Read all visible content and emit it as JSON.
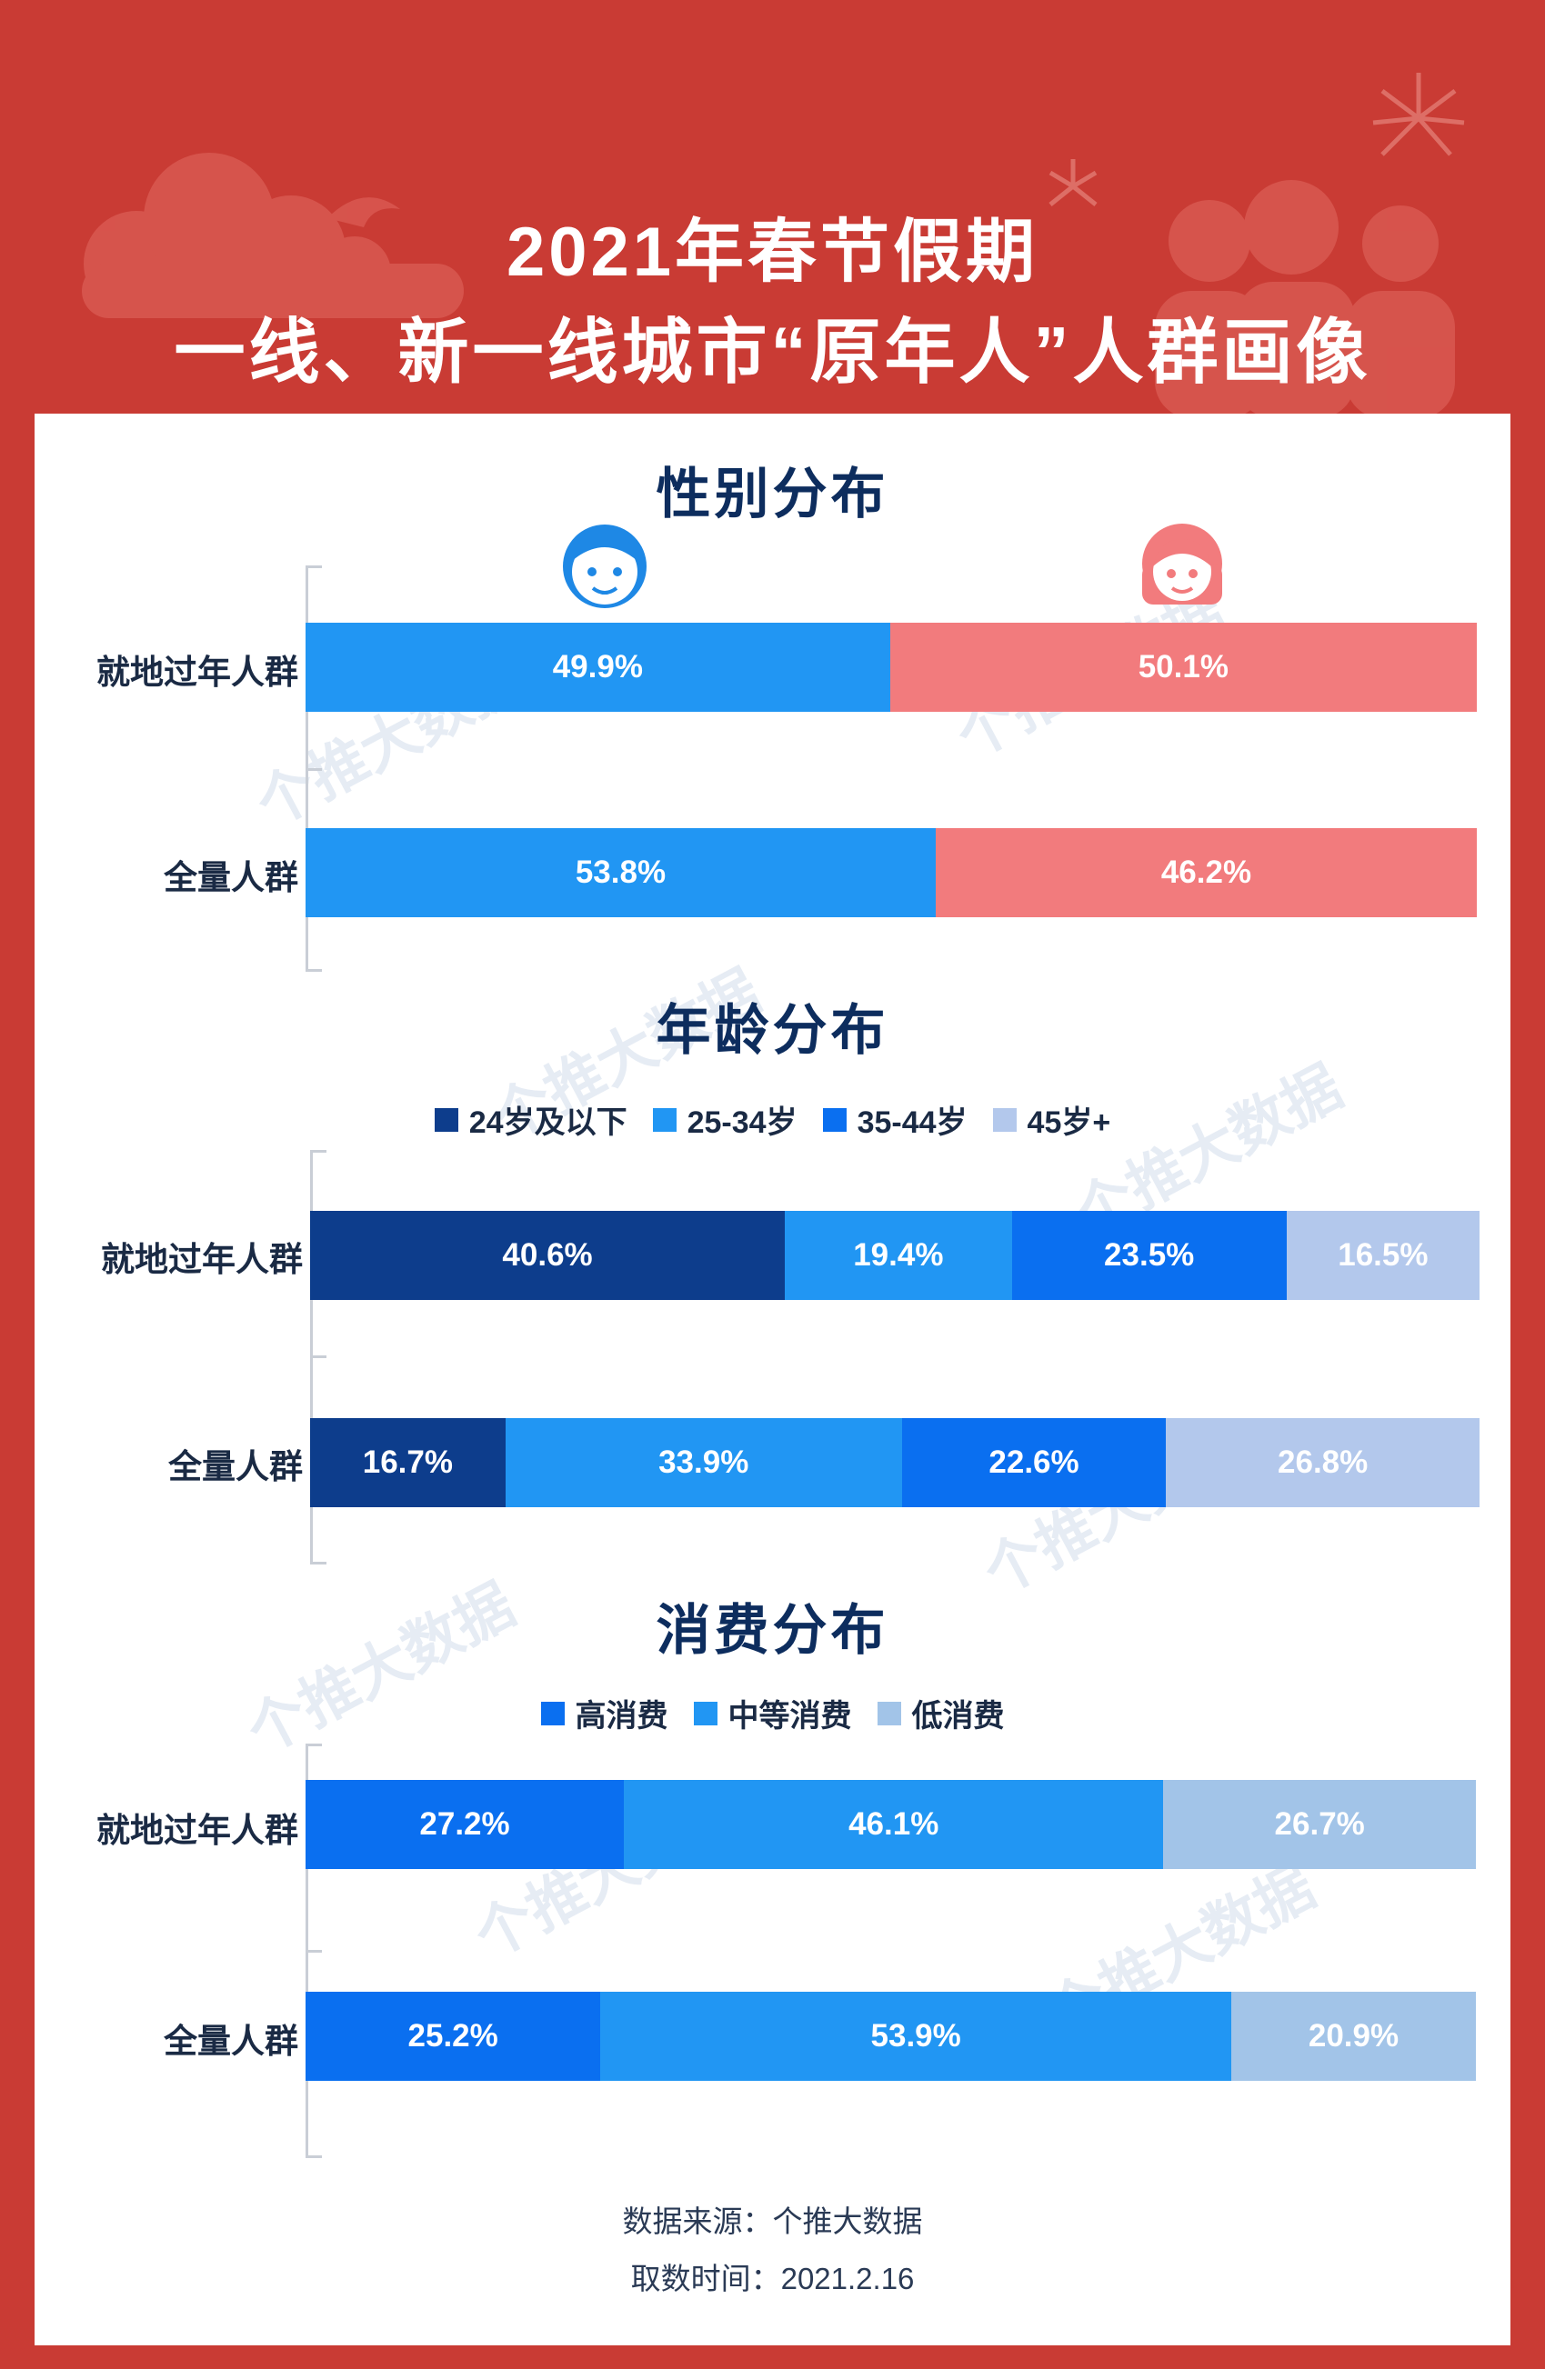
{
  "header": {
    "title_line1": "2021年春节假期",
    "title_line2": "一线、新一线城市“原年人”人群画像"
  },
  "watermark_text": "个推大数据",
  "colors": {
    "background_red": "#c93b34",
    "male": "#2196f3",
    "female": "#f27b7d",
    "age_24_below": "#0d3d8c",
    "age_25_34": "#2196f3",
    "age_35_44": "#0a6ff0",
    "age_45_plus": "#b3c8ec",
    "spend_high": "#0a6ff0",
    "spend_mid": "#2196f3",
    "spend_low": "#a2c4e8"
  },
  "sections": {
    "gender": {
      "title": "性别分布",
      "male_icon": "boy-face-icon",
      "female_icon": "girl-face-icon"
    },
    "age": {
      "title": "年龄分布"
    },
    "spend": {
      "title": "消费分布"
    }
  },
  "chart_data": [
    {
      "type": "bar",
      "stacked": true,
      "orientation": "horizontal",
      "title": "性别分布",
      "categories": [
        "就地过年人群",
        "全量人群"
      ],
      "series": [
        {
          "values": [
            49.9,
            53.8
          ],
          "labels": [
            "49.9%",
            "53.8%"
          ],
          "color": "#2196f3"
        },
        {
          "values": [
            50.1,
            46.2
          ],
          "labels": [
            "50.1%",
            "46.2%"
          ],
          "color": "#f27b7d"
        }
      ]
    },
    {
      "type": "bar",
      "stacked": true,
      "orientation": "horizontal",
      "title": "年龄分布",
      "legend": [
        "24岁及以下",
        "25-34岁",
        "35-44岁",
        "45岁+"
      ],
      "categories": [
        "就地过年人群",
        "全量人群"
      ],
      "series": [
        {
          "name": "24岁及以下",
          "values": [
            40.6,
            16.7
          ],
          "labels": [
            "40.6%",
            "16.7%"
          ],
          "color": "#0d3d8c"
        },
        {
          "name": "25-34岁",
          "values": [
            19.4,
            33.9
          ],
          "labels": [
            "19.4%",
            "33.9%"
          ],
          "color": "#2196f3"
        },
        {
          "name": "35-44岁",
          "values": [
            23.5,
            22.6
          ],
          "labels": [
            "23.5%",
            "22.6%"
          ],
          "color": "#0a6ff0"
        },
        {
          "name": "45岁+",
          "values": [
            16.5,
            26.8
          ],
          "labels": [
            "16.5%",
            "26.8%"
          ],
          "color": "#b3c8ec"
        }
      ]
    },
    {
      "type": "bar",
      "stacked": true,
      "orientation": "horizontal",
      "title": "消费分布",
      "legend": [
        "高消费",
        "中等消费",
        "低消费"
      ],
      "categories": [
        "就地过年人群",
        "全量人群"
      ],
      "series": [
        {
          "name": "高消费",
          "values": [
            27.2,
            25.2
          ],
          "labels": [
            "27.2%",
            "25.2%"
          ],
          "color": "#0a6ff0"
        },
        {
          "name": "中等消费",
          "values": [
            46.1,
            53.9
          ],
          "labels": [
            "46.1%",
            "53.9%"
          ],
          "color": "#2196f3"
        },
        {
          "name": "低消费",
          "values": [
            26.7,
            20.9
          ],
          "labels": [
            "26.7%",
            "20.9%"
          ],
          "color": "#a2c4e8"
        }
      ]
    }
  ],
  "footer": {
    "source": "数据来源：个推大数据",
    "date": "取数时间：2021.2.16"
  }
}
